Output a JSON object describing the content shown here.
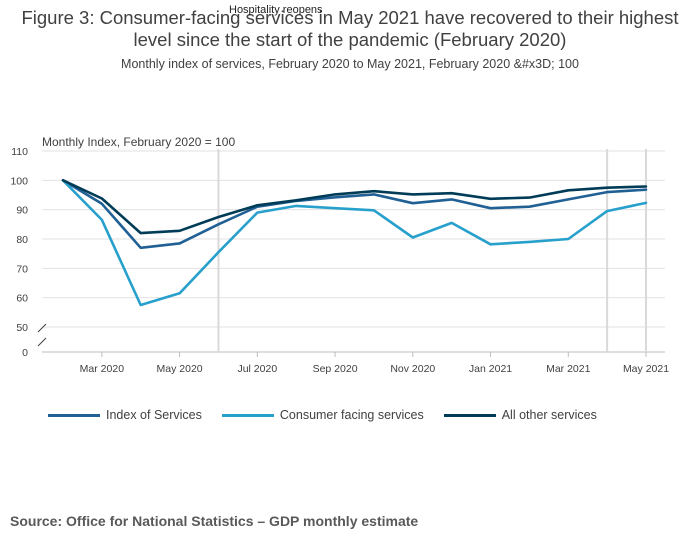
{
  "chart_data": {
    "type": "line",
    "title": "Figure 3: Consumer-facing services in May 2021 have recovered to their highest level since the start of the pandemic (February 2020)",
    "subtitle": "Monthly index of services, February 2020 to May 2021, February 2020 &#x3D; 100",
    "ylabel": "Monthly Index, February 2020 = 100",
    "ylim": [
      0,
      110
    ],
    "y_axis_break": [
      0,
      50
    ],
    "yticks": [
      "110",
      "100",
      "90",
      "80",
      "70",
      "60",
      "50",
      "0"
    ],
    "x": [
      "Feb 2020",
      "Mar 2020",
      "Apr 2020",
      "May 2020",
      "Jun 2020",
      "Jul 2020",
      "Aug 2020",
      "Sep 2020",
      "Oct 2020",
      "Nov 2020",
      "Dec 2020",
      "Jan 2021",
      "Feb 2021",
      "Mar 2021",
      "Apr 2021",
      "May 2021"
    ],
    "xtick_labels": [
      "Mar 2020",
      "May 2020",
      "Jul 2020",
      "Sep 2020",
      "Nov 2020",
      "Jan 2021",
      "Mar 2021",
      "May 2021"
    ],
    "series": [
      {
        "name": "Index of Services",
        "color": "#206095",
        "values": [
          100,
          92,
          77,
          78.5,
          85,
          91,
          93,
          94.2,
          95.2,
          92.2,
          93.5,
          90.5,
          91,
          93.5,
          96,
          96.8
        ]
      },
      {
        "name": "Consumer facing services",
        "color": "#27a0cc",
        "values": [
          100,
          86.5,
          57.5,
          61.5,
          75.5,
          89,
          91.3,
          90.5,
          89.8,
          80.5,
          85.5,
          78.2,
          79,
          80,
          89.5,
          92.3
        ]
      },
      {
        "name": "All other services",
        "color": "#003c57",
        "values": [
          100,
          93.8,
          82,
          82.8,
          87.5,
          91.5,
          93.2,
          95.2,
          96.3,
          95.2,
          95.6,
          93.7,
          94.1,
          96.6,
          97.5,
          97.9
        ]
      }
    ],
    "annotations": [
      {
        "label": "Hospitality reopens",
        "x": "Jun 2020"
      }
    ],
    "reference_lines_x": [
      "Jun 2020",
      "Apr 2021",
      "May 2021"
    ],
    "legend_position": "bottom-left"
  },
  "source": "Source: Office for National Statistics – GDP monthly estimate"
}
